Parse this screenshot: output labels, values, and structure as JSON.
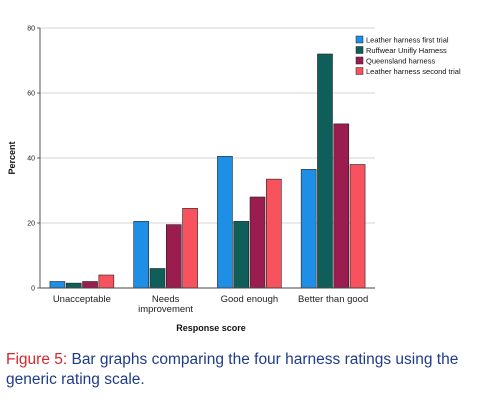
{
  "chart_data": {
    "type": "bar",
    "categories": [
      "Unacceptable",
      "Needs improvement",
      "Good enough",
      "Better than good"
    ],
    "category_labels": [
      [
        "Unacceptable"
      ],
      [
        "Needs",
        "improvement"
      ],
      [
        "Good enough"
      ],
      [
        "Better than good"
      ]
    ],
    "series": [
      {
        "name": "Leather harness  first trial",
        "color": "#1f8fe6",
        "values": [
          2,
          20.5,
          40.5,
          36.5
        ]
      },
      {
        "name": "Ruffwear Unifly Harness",
        "color": "#0f5e59",
        "values": [
          1.5,
          6,
          20.5,
          72
        ]
      },
      {
        "name": "Queensland harness",
        "color": "#9b1c4f",
        "values": [
          2,
          19.5,
          28,
          50.5
        ]
      },
      {
        "name": "Leather harness second trial",
        "color": "#f7525e",
        "values": [
          4,
          24.5,
          33.5,
          38
        ]
      }
    ],
    "xlabel": "Response score",
    "ylabel": "Percent",
    "ylim": [
      0,
      80
    ],
    "yticks": [
      0,
      20,
      40,
      60,
      80
    ],
    "grid": true,
    "legend": "top-right"
  },
  "caption": {
    "label": "Figure 5:",
    "text": " Bar graphs comparing the four harness ratings using the generic rating scale."
  }
}
